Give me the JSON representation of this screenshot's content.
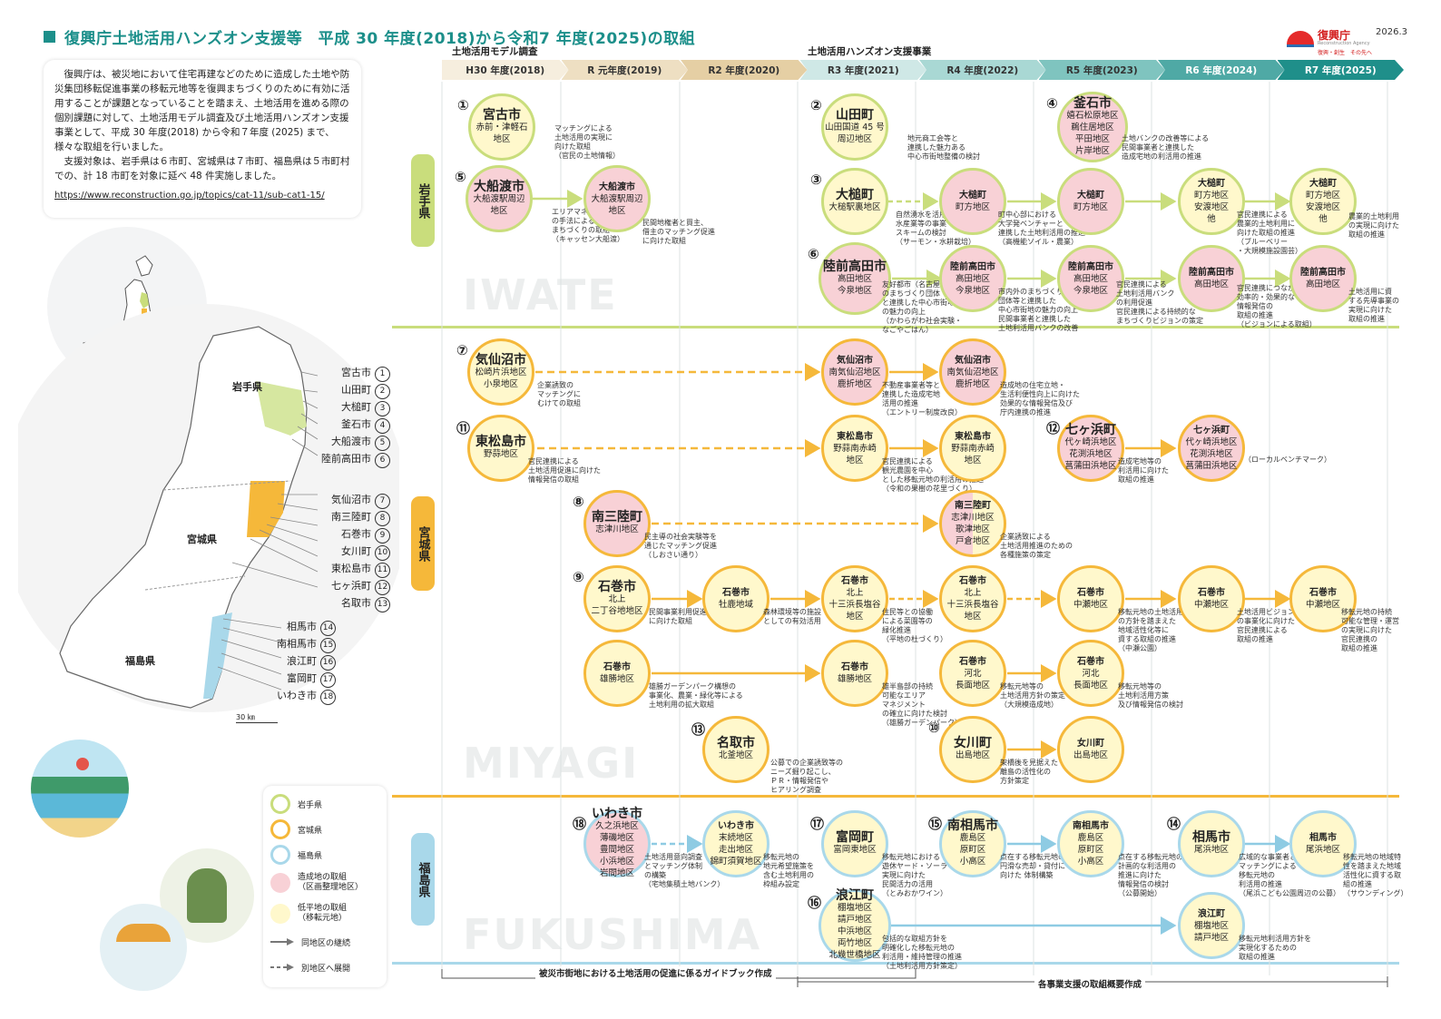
{
  "header": {
    "title": "復興庁土地活用ハンズオン支援等　平成 30 年度(2018)から令和7 年度(2025)の取組",
    "logo_name": "復興庁",
    "logo_en": "Reconstruction Agency",
    "logo_slogan": "復興・創生　その先へ",
    "date": "2026.3"
  },
  "intro": {
    "p1": "復興庁は、被災地において住宅再建などのために造成した土地や防災集団移転促進事業の移転元地等を復興まちづくりのために有効に活用することが課題となっていることを踏まえ、土地活用を進める際の個別課題に対して、土地活用モデル調査及び土地活用ハンズオン支援事業として、平成 30 年度(2018) から令和７年度 (2025) まで、様々な取組を行いました。",
    "p2": "支援対象は、岩手県は６市町、宮城県は７市町、福島県は５市町村での、計 18 市町を対象に延べ 48 件実施しました。",
    "url": "https://www.reconstruction.go.jp/topics/cat-11/sub-cat1-15/"
  },
  "timeline": {
    "model_label": "土地活用モデル調査",
    "handson_label": "土地活用ハンズオン支援事業",
    "years": [
      {
        "label": "H30 年度(2018)",
        "color": "#f6eede"
      },
      {
        "label": "R 元年度(2019)",
        "color": "#eedfc2"
      },
      {
        "label": "R2 年度(2020)",
        "color": "#e5cfa4"
      },
      {
        "label": "R3 年度(2021)",
        "color": "#cfe8e6"
      },
      {
        "label": "R4 年度(2022)",
        "color": "#a9d8d4"
      },
      {
        "label": "R5 年度(2023)",
        "color": "#7fc4bf"
      },
      {
        "label": "R6 年度(2024)",
        "color": "#4fa9a5"
      },
      {
        "label": "R7 年度(2025)",
        "color": "#1f8f8a"
      }
    ]
  },
  "prefectures": {
    "iwate": {
      "label": "岩手県",
      "word": "IWATE",
      "color": "#c9dd7c"
    },
    "miyagi": {
      "label": "宮城県",
      "word": "MIYAGI",
      "color": "#f5b83a"
    },
    "fukushima": {
      "label": "福島県",
      "word": "FUKUSHIMA",
      "color": "#a9d8ea"
    }
  },
  "map": {
    "iwate_label": "岩手県",
    "miyagi_label": "宮城県",
    "fukushima_label": "福島県",
    "scale": "30 ㎞",
    "cities": [
      {
        "name": "宮古市",
        "n": "1"
      },
      {
        "name": "山田町",
        "n": "2"
      },
      {
        "name": "大槌町",
        "n": "3"
      },
      {
        "name": "釜石市",
        "n": "4"
      },
      {
        "name": "大船渡市",
        "n": "5"
      },
      {
        "name": "陸前高田市",
        "n": "6"
      },
      {
        "name": "気仙沼市",
        "n": "7"
      },
      {
        "name": "南三陸町",
        "n": "8"
      },
      {
        "name": "石巻市",
        "n": "9"
      },
      {
        "name": "女川町",
        "n": "10"
      },
      {
        "name": "東松島市",
        "n": "11"
      },
      {
        "name": "七ヶ浜町",
        "n": "12"
      },
      {
        "name": "名取市",
        "n": "13"
      },
      {
        "name": "相馬市",
        "n": "14"
      },
      {
        "name": "南相馬市",
        "n": "15"
      },
      {
        "name": "浪江町",
        "n": "16"
      },
      {
        "name": "富岡町",
        "n": "17"
      },
      {
        "name": "いわき市",
        "n": "18"
      }
    ]
  },
  "legend": {
    "iwate": "岩手県",
    "miyagi": "宮城県",
    "fukushima": "福島県",
    "pink": "造成地の取組\n（区画整理地区）",
    "yellow": "低平地の取組\n（移転元地）",
    "same": "同地区の継続",
    "other": "別地区へ展開"
  },
  "footer": {
    "guide": "被災市街地における土地活用の促進に係るガイドブック作成",
    "summary": "各事業支援の取組概要作成"
  },
  "nodes": {
    "miyako": {
      "num": "①",
      "name": "宮古市",
      "sub": "赤前・津軽石\n地区",
      "note": "マッチングによる\n土地活用の実現に\n向けた取組\n（官民の土地情報）"
    },
    "ofunato": {
      "num": "⑤",
      "name": "大船渡市",
      "sub": "大船渡駅周辺\n地区",
      "note": "エリアマネジメント\nの手法による持続的な\nまちづくりの取組\n（キャッセン大船渡）"
    },
    "ofunato2": {
      "name": "大船渡市",
      "sub": "大船渡駅周辺\n地区",
      "note": "民間地権者と買主、\n借主のマッチング促進\nに向けた取組"
    },
    "yamada": {
      "num": "②",
      "name": "山田町",
      "sub": "山田国道 45 号\n周辺地区",
      "note": "地元商工会等と\n連携した魅力ある\n中心市街地整備の検討"
    },
    "kamaishi": {
      "num": "④",
      "name": "釜石市",
      "sub": "嬉石松原地区\n鵜住居地区\n平田地区\n片岸地区",
      "note": "土地バンクの改善等による\n民間事業者と連携した\n造成宅地の利活用の推進"
    },
    "otsuchi": {
      "num": "③",
      "name": "大槌町",
      "sub": "大槌駅裏地区",
      "note": "自然湧水を活用した\n水産業等の事業\nスキームの検討\n（サーモン・水耕栽培）"
    },
    "otsuchi2": {
      "name": "大槌町",
      "sub": "町方地区",
      "note": "町中心部における\n大学発ベンチャーと\n連携した土地利活用の推進\n（高機能ソイル・農業）"
    },
    "otsuchi3": {
      "name": "大槌町",
      "sub": "町方地区"
    },
    "otsuchi4": {
      "name": "大槌町",
      "sub": "町方地区\n安渡地区\n他",
      "note": "官民連携による\n農業的土地利用に\n向けた取組の推進\n（ブルーベリー\n・大規模施設園芸）"
    },
    "otsuchi5": {
      "name": "大槌町",
      "sub": "町方地区\n安渡地区\n他",
      "note": "農業的土地利用\nの実現に向けた\n取組の推進"
    },
    "rikuzen": {
      "num": "⑥",
      "name": "陸前高田市",
      "sub": "高田地区\n今泉地区",
      "note": "友好都市（名古屋市）\nのまちづくり団体\nと連携した中心市街地\nの魅力の向上\n（かわらがわ社会実験・\nなごやごはん）"
    },
    "rikuzen2": {
      "name": "陸前高田市",
      "sub": "高田地区\n今泉地区",
      "note": "市内外のまちづくり\n団体等と連携した\n中心市街地の魅力の向上\n民間事業者と連携した\n土地利活用バンクの改善"
    },
    "rikuzen3": {
      "name": "陸前高田市",
      "sub": "高田地区\n今泉地区",
      "note": "官民連携による\n土地利活用バンク\nの利用促進\n官民連携による持続的な\nまちづくりビジョンの策定"
    },
    "rikuzen4": {
      "name": "陸前高田市",
      "sub": "高田地区",
      "note": "官民連携につながる\n効率的・効果的な\n情報発信の\n取組の推進\n（ビジョンによる取組）"
    },
    "rikuzen5": {
      "name": "陸前高田市",
      "sub": "高田地区",
      "note": "土地活用に資\nする先導事業の\n実現に向けた\n取組の推進"
    },
    "kesennuma": {
      "num": "⑦",
      "name": "気仙沼市",
      "sub": "松崎片浜地区\n小泉地区",
      "note": "企業誘致の\nマッチングに\nむけての取組"
    },
    "kesennuma2": {
      "name": "気仙沼市",
      "sub": "南気仙沼地区\n鹿折地区",
      "note": "不動産事業者等と\n連携した造成宅地\n活用の推進\n（エントリー制度改良）"
    },
    "kesennuma3": {
      "name": "気仙沼市",
      "sub": "南気仙沼地区\n鹿折地区",
      "note": "造成地の住宅立地・\n生活利便性向上に向けた\n効果的な情報発信及び\n庁内連携の推進"
    },
    "higashimatsushima": {
      "num": "⑪",
      "name": "東松島市",
      "sub": "野蒜地区",
      "note": "官民連携による\n土地活用促進に向けた\n情報発信の取組"
    },
    "higashimatsushima2": {
      "name": "東松島市",
      "sub": "野蒜南赤崎\n地区",
      "note": "官民連携による\n観光農園を中心\nとした移転元地の利活用の推進\n（令和の果樹の花里づくり）"
    },
    "higashimatsushima3": {
      "name": "東松島市",
      "sub": "野蒜南赤崎\n地区"
    },
    "shichigahama": {
      "num": "⑫",
      "name": "七ヶ浜町",
      "sub": "代ヶ崎浜地区\n花渕浜地区\n菖蒲田浜地区",
      "note": "造成宅地等の\n利活用に向けた\n取組の推進"
    },
    "shichigahama2": {
      "name": "七ヶ浜町",
      "sub": "代ヶ崎浜地区\n花渕浜地区\n菖蒲田浜地区",
      "note": "（ローカルベンチマーク）"
    },
    "minamisanriku": {
      "num": "⑧",
      "name": "南三陸町",
      "sub": "志津川地区",
      "note": "民主導の社会実験等を\n通じたマッチング促進\n（しおさい通り）"
    },
    "minamisanriku2": {
      "name": "南三陸町",
      "sub": "志津川地区\n歌津地区\n戸倉地区",
      "note": "企業誘致による\n土地活用推進のための\n各種施策の策定"
    },
    "ishinomaki": {
      "num": "⑨",
      "name": "石巻市",
      "sub": "北上\n二丁谷地地区",
      "note": "民間事業利用促進\nに向けた取組"
    },
    "ishinomaki2": {
      "name": "石巻市",
      "sub": "牡鹿地域",
      "note": "森林環境等の施設\nとしての有効活用"
    },
    "ishinomaki3": {
      "name": "石巻市",
      "sub": "北上\n十三浜長塩谷\n地区",
      "note": "住民等との協働\nによる菜園等の\n緑化推進\n（平地の杜づくり）"
    },
    "ishinomaki4": {
      "name": "石巻市",
      "sub": "北上\n十三浜長塩谷\n地区"
    },
    "ishinomaki5": {
      "name": "石巻市",
      "sub": "中瀬地区",
      "note": "移転元地の土地活用\nの方針を踏まえた\n地域活性化等に\n資する取組の推進\n（中瀬公園）"
    },
    "ishinomaki6": {
      "name": "石巻市",
      "sub": "中瀬地区",
      "note": "土地活用ビジョン\nの事業化に向けた\n官民連携による\n取組の推進"
    },
    "ishinomaki7": {
      "name": "石巻市",
      "sub": "中瀬地区",
      "note": "移転元地の持続\n可能な管理・運営\nの実現に向けた\n官民連携の\n取組の推進"
    },
    "ishinomaki8": {
      "name": "石巻市",
      "sub": "雄勝地区",
      "note": "雄勝ガーデンパーク構想の\n事業化、農業・緑化等による\n土地利用の拡大取組"
    },
    "ishinomaki9": {
      "name": "石巻市",
      "sub": "雄勝地区",
      "note": "雄半島部の持続\n可能なエリア\nマネジメント\nの確立に向けた検討\n（雄勝ガーデンパーク）"
    },
    "ishinomaki10": {
      "name": "石巻市",
      "sub": "河北\n長面地区",
      "note": "移転元地等の\n土地活用方針の策定\n（大規模造成地）"
    },
    "ishinomaki11": {
      "name": "石巻市",
      "sub": "河北\n長面地区",
      "note": "移転元地等の\n土地利活用方策\n及び情報発信の検討"
    },
    "natori": {
      "num": "⑬",
      "name": "名取市",
      "sub": "北釜地区",
      "note": "公募での企業誘致等の\nニーズ掘り起こし、\nＰＲ・情報発信や\nヒアリング調査"
    },
    "onagawa": {
      "num": "⑩",
      "name": "女川町",
      "sub": "出島地区",
      "note": "架橋後を見据えた\n離島の活性化の\n方針策定"
    },
    "onagawa2": {
      "name": "女川町",
      "sub": "出島地区"
    },
    "iwaki": {
      "num": "⑱",
      "name": "いわき市",
      "sub": "久之浜地区\n薄磯地区\n豊間地区\n小浜地区\n岩間地区",
      "note": "土地活用意向調査\nとマッチング体制\nの構築\n（宅地集積土地バンク）"
    },
    "iwaki2": {
      "name": "いわき市",
      "sub": "末続地区\n走出地区\n錦町須賀地区",
      "note": "移転元地の\n地元希望施策を\n含む土地利用の\n枠組み設定"
    },
    "tomioka": {
      "num": "⑰",
      "name": "富岡町",
      "sub": "富岡東地区",
      "note": "移転元地における\n遊休ヤード・ソーラー\n実現に向けた\n民間活力の活用\n（とみおかワイン）"
    },
    "namie": {
      "num": "⑯",
      "name": "浪江町",
      "sub": "棚塩地区\n請戸地区\n中浜地区\n両竹地区\n北幾世橋地区",
      "note": "包括的な取組方針を\n明確化した移転元地の\n利活用・維持管理の推進\n（土地利活用方針策定）"
    },
    "minamisoma": {
      "num": "⑮",
      "name": "南相馬市",
      "sub": "鹿島区\n原町区\n小高区",
      "note": "点在する移転元地の\n円滑な売却・貸付に\n向けた 体制構築"
    },
    "minamisoma2": {
      "name": "南相馬市",
      "sub": "鹿島区\n原町区\n小高区",
      "note": "点在する移転元地の\n計画的な利活用の\n推進に向けた\n情報発信の検討\n（公募開始）"
    },
    "soma": {
      "num": "⑭",
      "name": "相馬市",
      "sub": "尾浜地区",
      "note": "広域的な事業者との\nマッチングによる\n移転元地の\n利活用の推進\n（尾浜こども公園周辺の公募）"
    },
    "soma2": {
      "name": "相馬市",
      "sub": "尾浜地区",
      "note": "移転元地の地域特\n性を踏まえた地域\n活性化に資する取\n組の推進\n（サウンディング）"
    },
    "namie2": {
      "name": "浪江町",
      "sub": "棚塩地区\n請戸地区",
      "note": "移転元地利活用方針を\n実現化するための\n取組の推進"
    }
  }
}
